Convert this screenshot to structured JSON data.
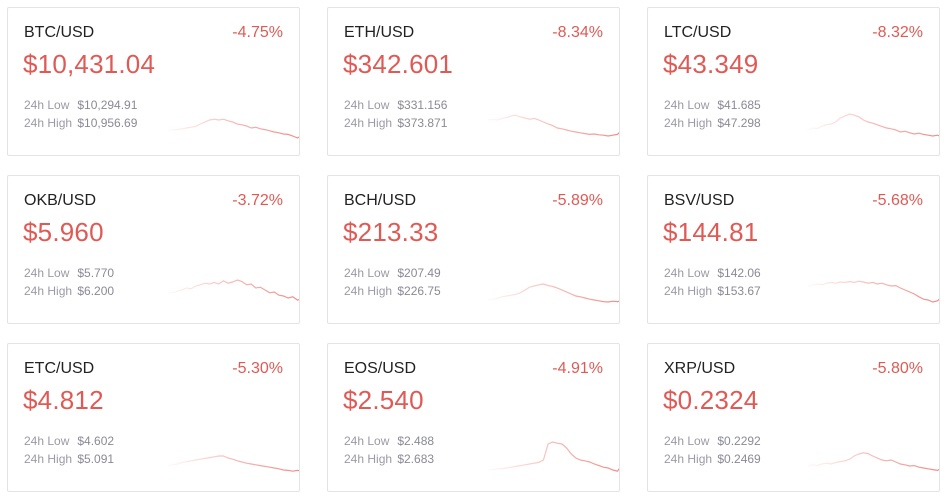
{
  "labels": {
    "low": "24h Low",
    "high": "24h High"
  },
  "colors": {
    "down": "#e05a55",
    "spark": "#f08a85"
  },
  "tickers": [
    {
      "pair": "BTC/USD",
      "change": "-4.75%",
      "price": "$10,431.04",
      "low": "$10,294.91",
      "high": "$10,956.69",
      "spark": [
        0.75,
        0.74,
        0.74,
        0.72,
        0.7,
        0.68,
        0.66,
        0.6,
        0.55,
        0.5,
        0.48,
        0.5,
        0.48,
        0.52,
        0.55,
        0.6,
        0.62,
        0.65,
        0.7,
        0.68,
        0.72,
        0.74,
        0.77,
        0.8,
        0.82,
        0.85,
        0.86,
        0.9,
        0.95,
        0.88
      ]
    },
    {
      "pair": "ETH/USD",
      "change": "-8.34%",
      "price": "$342.601",
      "low": "$331.156",
      "high": "$373.871",
      "spark": [
        0.5,
        0.48,
        0.5,
        0.46,
        0.44,
        0.4,
        0.38,
        0.42,
        0.45,
        0.48,
        0.46,
        0.5,
        0.55,
        0.6,
        0.64,
        0.7,
        0.72,
        0.75,
        0.78,
        0.8,
        0.82,
        0.84,
        0.86,
        0.85,
        0.87,
        0.88,
        0.9,
        0.88,
        0.86,
        0.75
      ]
    },
    {
      "pair": "LTC/USD",
      "change": "-8.32%",
      "price": "$43.349",
      "low": "$41.685",
      "high": "$47.298",
      "spark": [
        0.75,
        0.7,
        0.72,
        0.65,
        0.62,
        0.6,
        0.55,
        0.45,
        0.4,
        0.35,
        0.38,
        0.42,
        0.5,
        0.55,
        0.58,
        0.62,
        0.66,
        0.7,
        0.72,
        0.75,
        0.8,
        0.78,
        0.82,
        0.85,
        0.83,
        0.86,
        0.88,
        0.9,
        0.88,
        0.92
      ]
    },
    {
      "pair": "OKB/USD",
      "change": "-3.72%",
      "price": "$5.960",
      "low": "$5.770",
      "high": "$6.200",
      "spark": [
        0.6,
        0.62,
        0.58,
        0.55,
        0.5,
        0.52,
        0.45,
        0.42,
        0.38,
        0.4,
        0.36,
        0.4,
        0.32,
        0.38,
        0.35,
        0.3,
        0.34,
        0.42,
        0.4,
        0.5,
        0.48,
        0.55,
        0.62,
        0.6,
        0.68,
        0.7,
        0.75,
        0.72,
        0.8,
        0.78
      ]
    },
    {
      "pair": "BCH/USD",
      "change": "-5.89%",
      "price": "$213.33",
      "low": "$207.49",
      "high": "$226.75",
      "spark": [
        0.8,
        0.78,
        0.76,
        0.72,
        0.7,
        0.68,
        0.66,
        0.62,
        0.55,
        0.48,
        0.45,
        0.42,
        0.4,
        0.44,
        0.46,
        0.5,
        0.55,
        0.6,
        0.65,
        0.7,
        0.72,
        0.75,
        0.78,
        0.8,
        0.82,
        0.84,
        0.85,
        0.83,
        0.84,
        0.82
      ]
    },
    {
      "pair": "BSV/USD",
      "change": "-5.68%",
      "price": "$144.81",
      "low": "$142.06",
      "high": "$153.67",
      "spark": [
        0.45,
        0.42,
        0.4,
        0.42,
        0.38,
        0.36,
        0.38,
        0.35,
        0.36,
        0.34,
        0.36,
        0.33,
        0.35,
        0.38,
        0.36,
        0.4,
        0.38,
        0.42,
        0.45,
        0.44,
        0.5,
        0.55,
        0.6,
        0.65,
        0.72,
        0.78,
        0.8,
        0.85,
        0.82,
        0.72
      ]
    },
    {
      "pair": "ETC/USD",
      "change": "-5.30%",
      "price": "$4.812",
      "low": "$4.602",
      "high": "$5.091",
      "spark": [
        0.75,
        0.72,
        0.7,
        0.66,
        0.64,
        0.62,
        0.6,
        0.58,
        0.56,
        0.54,
        0.52,
        0.5,
        0.5,
        0.55,
        0.58,
        0.62,
        0.65,
        0.68,
        0.7,
        0.72,
        0.74,
        0.76,
        0.78,
        0.8,
        0.82,
        0.85,
        0.86,
        0.88,
        0.86,
        0.88
      ]
    },
    {
      "pair": "EOS/USD",
      "change": "-4.91%",
      "price": "$2.540",
      "low": "$2.488",
      "high": "$2.683",
      "spark": [
        0.85,
        0.84,
        0.82,
        0.82,
        0.8,
        0.78,
        0.76,
        0.74,
        0.72,
        0.7,
        0.68,
        0.66,
        0.6,
        0.2,
        0.15,
        0.18,
        0.2,
        0.3,
        0.45,
        0.55,
        0.6,
        0.62,
        0.65,
        0.7,
        0.74,
        0.78,
        0.8,
        0.85,
        0.88,
        0.72
      ]
    },
    {
      "pair": "XRP/USD",
      "change": "-5.80%",
      "price": "$0.2324",
      "low": "$0.2292",
      "high": "$0.2469",
      "spark": [
        0.75,
        0.72,
        0.74,
        0.7,
        0.68,
        0.7,
        0.66,
        0.64,
        0.62,
        0.58,
        0.5,
        0.45,
        0.42,
        0.44,
        0.5,
        0.55,
        0.6,
        0.62,
        0.6,
        0.65,
        0.7,
        0.72,
        0.75,
        0.74,
        0.78,
        0.8,
        0.82,
        0.84,
        0.86,
        0.8
      ]
    }
  ]
}
